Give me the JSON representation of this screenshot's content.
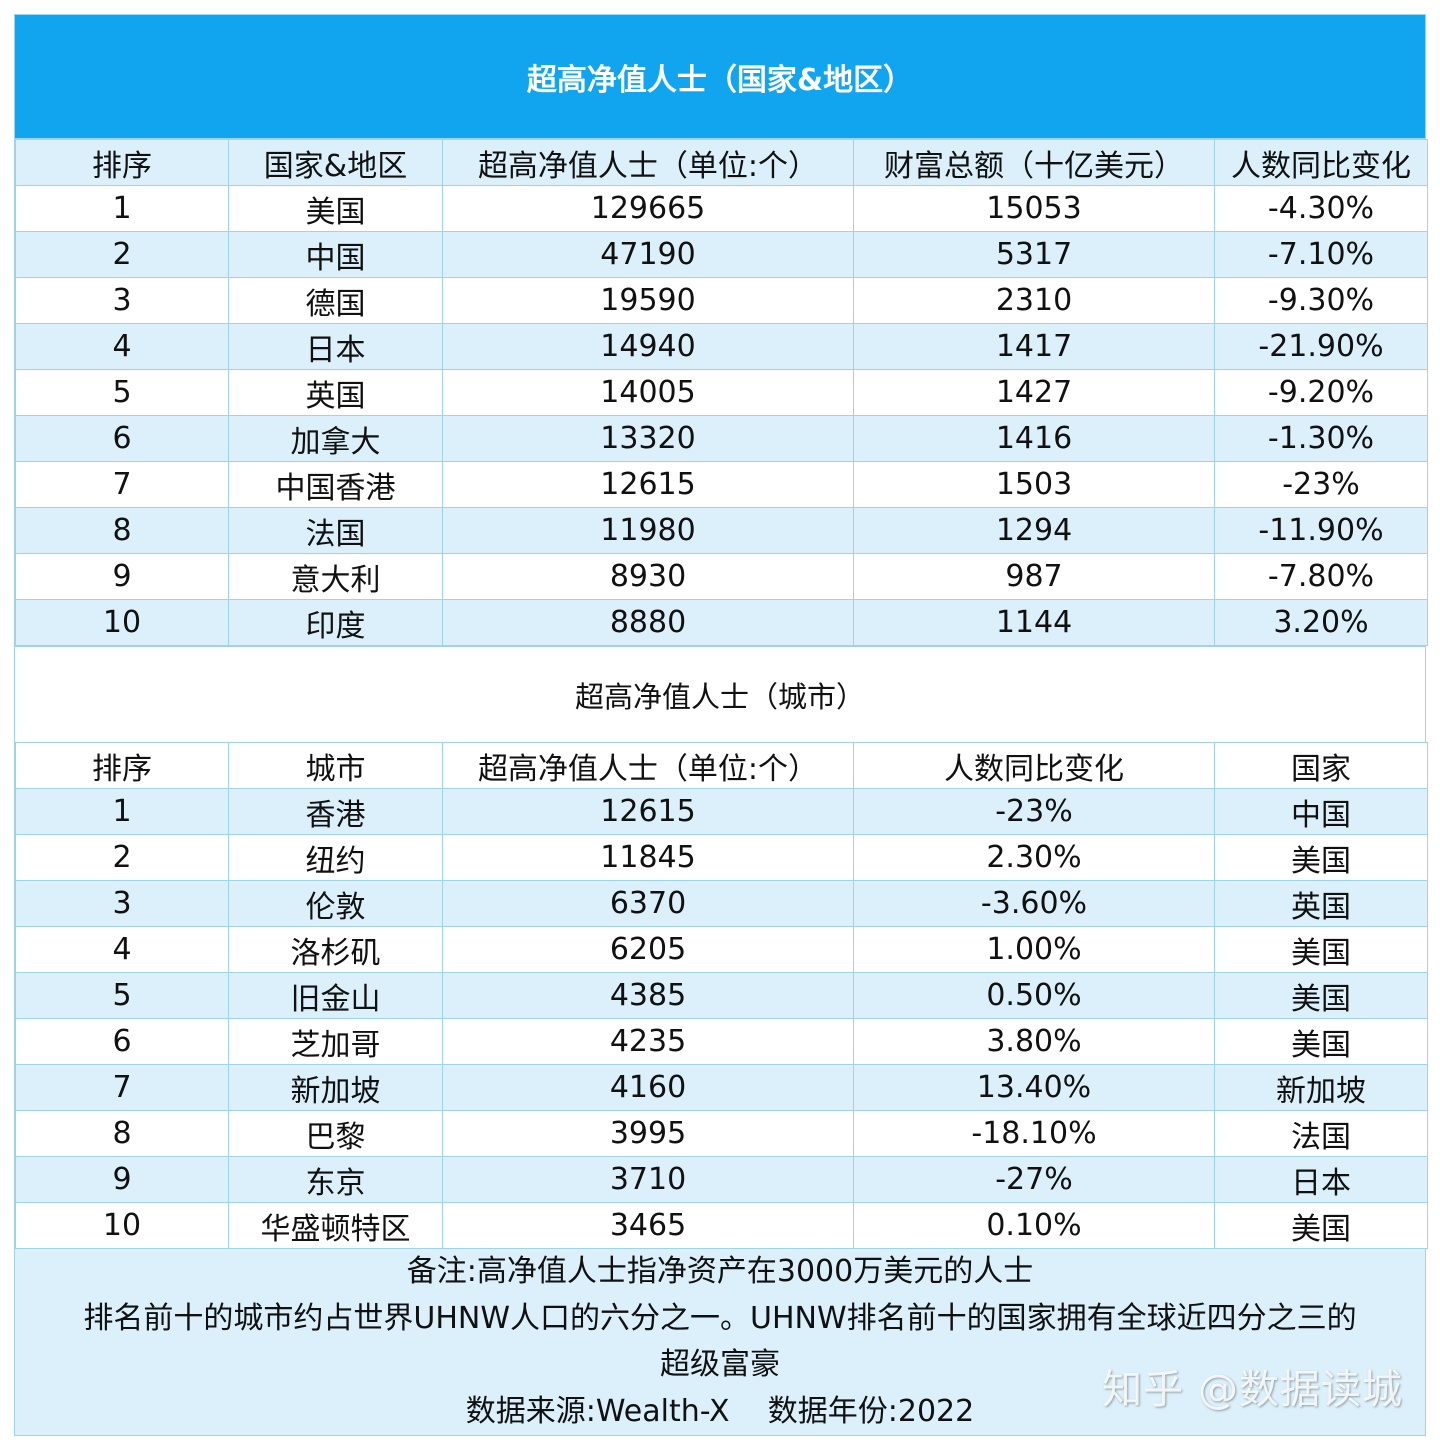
{
  "country_table": {
    "title": "超高净值人士（国家&地区）",
    "headers": [
      "排序",
      "国家&地区",
      "超高净值人士（单位:个）",
      "财富总额（十亿美元）",
      "人数同比变化"
    ],
    "rows": [
      [
        "1",
        "美国",
        "129665",
        "15053",
        "-4.30%"
      ],
      [
        "2",
        "中国",
        "47190",
        "5317",
        "-7.10%"
      ],
      [
        "3",
        "德国",
        "19590",
        "2310",
        "-9.30%"
      ],
      [
        "4",
        "日本",
        "14940",
        "1417",
        "-21.90%"
      ],
      [
        "5",
        "英国",
        "14005",
        "1427",
        "-9.20%"
      ],
      [
        "6",
        "加拿大",
        "13320",
        "1416",
        "-1.30%"
      ],
      [
        "7",
        "中国香港",
        "12615",
        "1503",
        "-23%"
      ],
      [
        "8",
        "法国",
        "11980",
        "1294",
        "-11.90%"
      ],
      [
        "9",
        "意大利",
        "8930",
        "987",
        "-7.80%"
      ],
      [
        "10",
        "印度",
        "8880",
        "1144",
        "3.20%"
      ]
    ]
  },
  "city_table": {
    "title": "超高净值人士（城市）",
    "headers": [
      "排序",
      "城市",
      "超高净值人士（单位:个）",
      "人数同比变化",
      "国家"
    ],
    "rows": [
      [
        "1",
        "香港",
        "12615",
        "-23%",
        "中国"
      ],
      [
        "2",
        "纽约",
        "11845",
        "2.30%",
        "美国"
      ],
      [
        "3",
        "伦敦",
        "6370",
        "-3.60%",
        "英国"
      ],
      [
        "4",
        "洛杉矶",
        "6205",
        "1.00%",
        "美国"
      ],
      [
        "5",
        "旧金山",
        "4385",
        "0.50%",
        "美国"
      ],
      [
        "6",
        "芝加哥",
        "4235",
        "3.80%",
        "美国"
      ],
      [
        "7",
        "新加坡",
        "4160",
        "13.40%",
        "新加坡"
      ],
      [
        "8",
        "巴黎",
        "3995",
        "-18.10%",
        "法国"
      ],
      [
        "9",
        "东京",
        "3710",
        "-27%",
        "日本"
      ],
      [
        "10",
        "华盛顿特区",
        "3465",
        "0.10%",
        "美国"
      ]
    ]
  },
  "notes": {
    "line1": "备注:高净值人士指净资产在3000万美元的人士",
    "line2": "排名前十的城市约占世界UHNW人口的六分之一。UHNW排名前十的国家拥有全球近四分之三的",
    "line3": "超级富豪",
    "line4": "数据来源:Wealth-X    数据年份:2022"
  },
  "watermark": "知乎 @数据读城",
  "colors": {
    "title_bg": "#12a5ef",
    "stripe_bg": "#dcf0fb",
    "border": "#9fd3ea"
  }
}
